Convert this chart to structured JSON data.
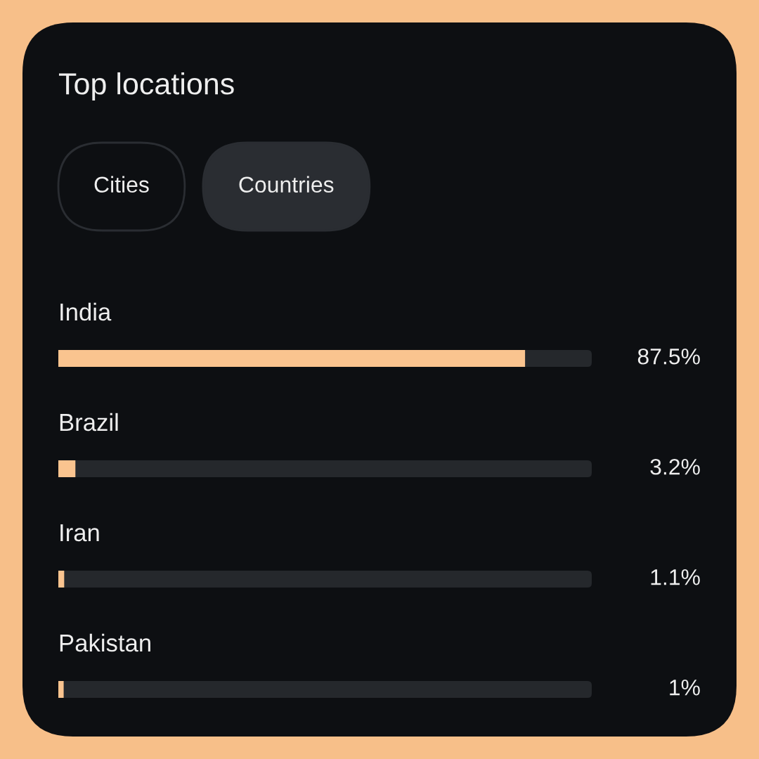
{
  "chart_data": {
    "type": "bar",
    "orientation": "horizontal",
    "title": "Top locations",
    "annotations": [
      "Cities",
      "Countries"
    ],
    "categories": [
      "India",
      "Brazil",
      "Iran",
      "Pakistan"
    ],
    "values": [
      87.5,
      3.2,
      1.1,
      1
    ],
    "value_labels": [
      "87.5%",
      "3.2%",
      "1.1%",
      "1%"
    ],
    "color": "#fac48f",
    "xlim": [
      0,
      100
    ],
    "tick_labels": "y"
  }
}
